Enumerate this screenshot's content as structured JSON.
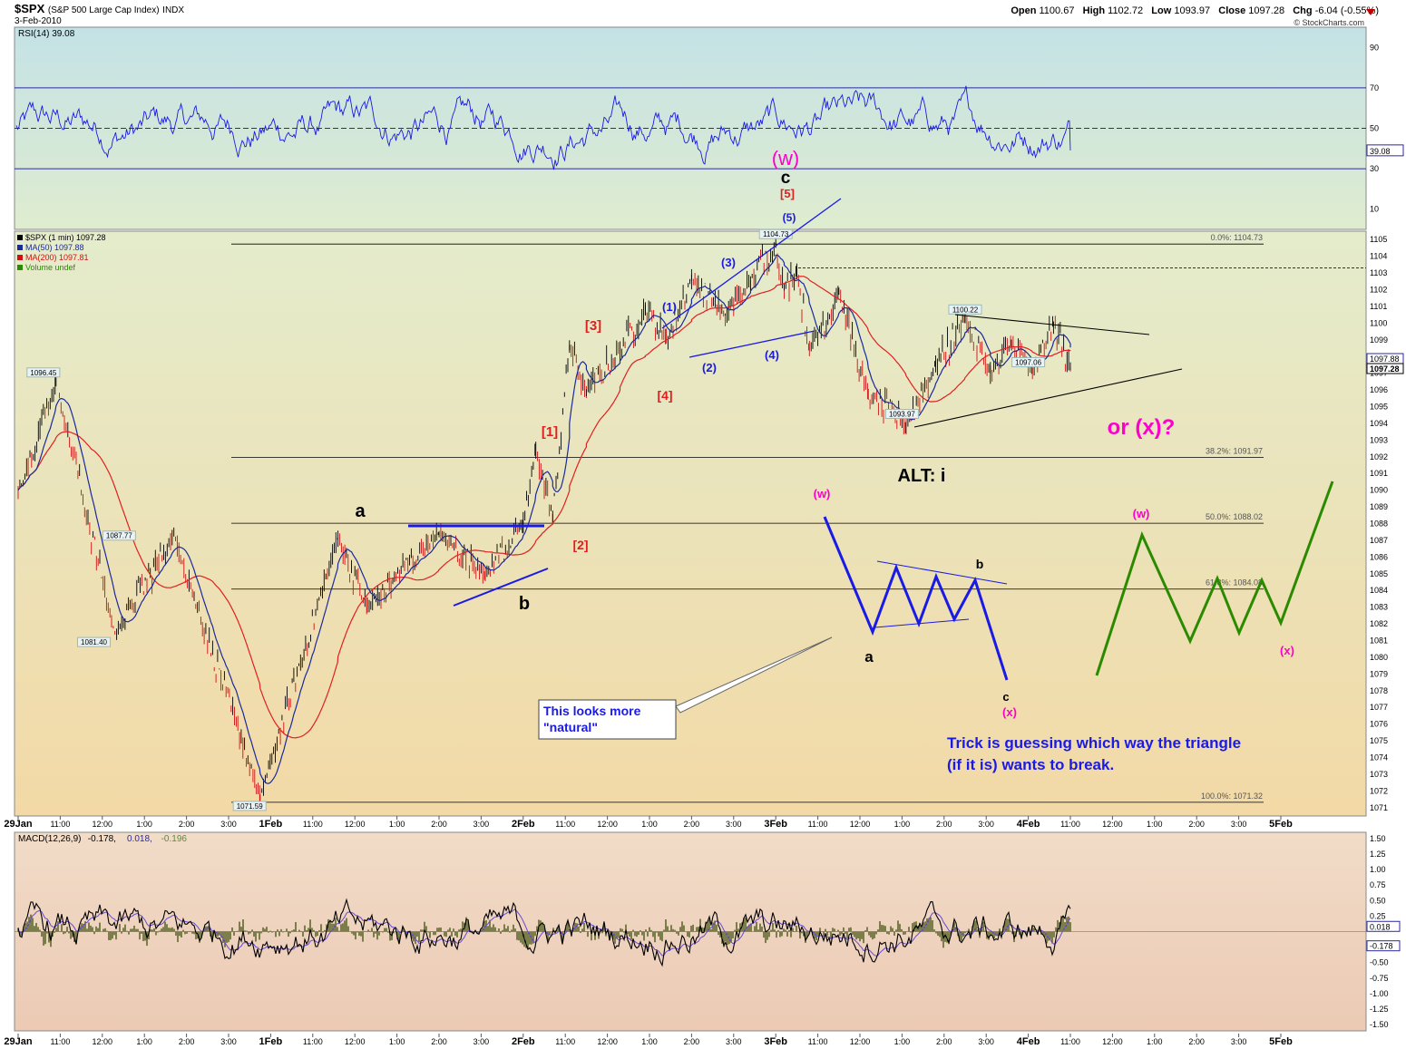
{
  "header": {
    "symbol": "$SPX",
    "name": "(S&P 500 Large Cap Index)",
    "exchange": "INDX",
    "date": "3-Feb-2010",
    "open_label": "Open",
    "open": "1100.67",
    "high_label": "High",
    "high": "1102.72",
    "low_label": "Low",
    "low": "1093.97",
    "close_label": "Close",
    "close": "1097.28",
    "chg_label": "Chg",
    "chg": "-6.04 (-0.55%)",
    "copyright": "© StockCharts.com"
  },
  "colors": {
    "rsi_bg": "#cfe6e6",
    "price_bg": "#f2e6b4",
    "macd_bg": "#f0d8c0",
    "blue": "#1a1ae6",
    "red": "#e02020",
    "magenta": "#ff00cc",
    "green": "#2a8a00",
    "hist": "#4a5a1a",
    "fib": "#000000"
  },
  "x_axis": {
    "labels": [
      "29Jan",
      "11:00",
      "12:00",
      "1:00",
      "2:00",
      "3:00",
      "1Feb",
      "11:00",
      "12:00",
      "1:00",
      "2:00",
      "3:00",
      "2Feb",
      "11:00",
      "12:00",
      "1:00",
      "2:00",
      "3:00",
      "3Feb",
      "11:00",
      "12:00",
      "1:00",
      "2:00",
      "3:00",
      "4Feb",
      "11:00",
      "12:00",
      "1:00",
      "2:00",
      "3:00",
      "5Feb"
    ],
    "bold": [
      "29Jan",
      "1Feb",
      "2Feb",
      "3Feb",
      "4Feb",
      "5Feb"
    ]
  },
  "chart_data": [
    {
      "type": "line",
      "panel": "RSI",
      "title": "RSI(14) 39.08",
      "ylim": [
        0,
        100
      ],
      "yticks": [
        10,
        30,
        50,
        70,
        90
      ],
      "reference_lines": [
        30,
        50,
        70
      ],
      "last_value_label": "39.08",
      "series": [
        {
          "name": "RSI(14)",
          "last": 39.08
        }
      ]
    },
    {
      "type": "line",
      "panel": "Price",
      "legend": [
        "$SPX (1 min) 1097.28",
        "MA(50) 1097.88",
        "MA(200) 1097.81",
        "Volume undef"
      ],
      "ylim": [
        1070.5,
        1105.5
      ],
      "yticks": [
        1071,
        1072,
        1073,
        1074,
        1075,
        1076,
        1077,
        1078,
        1079,
        1080,
        1081,
        1082,
        1083,
        1084,
        1085,
        1086,
        1087,
        1088,
        1089,
        1090,
        1091,
        1092,
        1093,
        1094,
        1095,
        1096,
        1097,
        1098,
        1099,
        1100,
        1101,
        1102,
        1103,
        1104,
        1105
      ],
      "right_labels": [
        "1097.88",
        "1097.28"
      ],
      "fib_levels": [
        {
          "label": "0.0%: 1104.73",
          "value": 1104.73
        },
        {
          "label": "38.2%: 1091.97",
          "value": 1091.97
        },
        {
          "label": "50.0%: 1088.02",
          "value": 1088.02
        },
        {
          "label": "61.8%: 1084.08",
          "value": 1084.08
        },
        {
          "label": "100.0%: 1071.32",
          "value": 1071.32
        }
      ],
      "price_labels": [
        {
          "text": "1096.45",
          "t": 0.6,
          "v": 1096.45
        },
        {
          "text": "1087.77",
          "t": 2.4,
          "v": 1087.77
        },
        {
          "text": "1081.40",
          "t": 1.8,
          "v": 1081.4
        },
        {
          "text": "1071.59",
          "t": 5.5,
          "v": 1071.59
        },
        {
          "text": "1104.73",
          "t": 18.0,
          "v": 1104.73
        },
        {
          "text": "1093.97",
          "t": 21.0,
          "v": 1093.97
        },
        {
          "text": "1100.22",
          "t": 22.5,
          "v": 1100.22
        },
        {
          "text": "1097.06",
          "t": 24.0,
          "v": 1097.06
        }
      ],
      "key_points": [
        {
          "t": 0.0,
          "v": 1090
        },
        {
          "t": 0.9,
          "v": 1096.45
        },
        {
          "t": 2.3,
          "v": 1081.4
        },
        {
          "t": 3.7,
          "v": 1087.3
        },
        {
          "t": 5.75,
          "v": 1071.59
        },
        {
          "t": 7.6,
          "v": 1087.2
        },
        {
          "t": 8.3,
          "v": 1083
        },
        {
          "t": 10.0,
          "v": 1087.5
        },
        {
          "t": 11.1,
          "v": 1085
        },
        {
          "t": 12.0,
          "v": 1088
        },
        {
          "t": 12.3,
          "v": 1092.3
        },
        {
          "t": 12.7,
          "v": 1088.5
        },
        {
          "t": 13.1,
          "v": 1098.7
        },
        {
          "t": 13.5,
          "v": 1096
        },
        {
          "t": 14.3,
          "v": 1098.4
        },
        {
          "t": 14.9,
          "v": 1100.9
        },
        {
          "t": 15.4,
          "v": 1099
        },
        {
          "t": 16.0,
          "v": 1102.6
        },
        {
          "t": 16.8,
          "v": 1100.5
        },
        {
          "t": 17.4,
          "v": 1102.5
        },
        {
          "t": 18.0,
          "v": 1104.73
        },
        {
          "t": 18.2,
          "v": 1102
        },
        {
          "t": 18.5,
          "v": 1103.3
        },
        {
          "t": 18.8,
          "v": 1098.5
        },
        {
          "t": 19.5,
          "v": 1101.7
        },
        {
          "t": 20.2,
          "v": 1095.5
        },
        {
          "t": 21.1,
          "v": 1093.97
        },
        {
          "t": 21.8,
          "v": 1097.5
        },
        {
          "t": 22.5,
          "v": 1100.22
        },
        {
          "t": 23.1,
          "v": 1097
        },
        {
          "t": 23.6,
          "v": 1098.7
        },
        {
          "t": 24.1,
          "v": 1097.06
        },
        {
          "t": 24.6,
          "v": 1100
        },
        {
          "t": 25.0,
          "v": 1097.28
        }
      ],
      "annotations": [
        {
          "text": "a",
          "color": "#000000"
        },
        {
          "text": "b",
          "color": "#000000"
        },
        {
          "text": "[1]",
          "color": "#e02020"
        },
        {
          "text": "[2]",
          "color": "#e02020"
        },
        {
          "text": "[3]",
          "color": "#e02020"
        },
        {
          "text": "[4]",
          "color": "#e02020"
        },
        {
          "text": "[5]",
          "color": "#e02020"
        },
        {
          "text": "(1)",
          "color": "#1a1ae6"
        },
        {
          "text": "(2)",
          "color": "#1a1ae6"
        },
        {
          "text": "(3)",
          "color": "#1a1ae6"
        },
        {
          "text": "(4)",
          "color": "#1a1ae6"
        },
        {
          "text": "(5)",
          "color": "#1a1ae6"
        },
        {
          "text": "(w)",
          "color": "#ff00cc"
        },
        {
          "text": "c",
          "color": "#000000"
        },
        {
          "text": "ALT: i",
          "color": "#000000"
        },
        {
          "text": "or (x)?",
          "color": "#ff00cc"
        },
        {
          "text": "(w)",
          "color": "#ff00cc"
        },
        {
          "text": "a",
          "color": "#000000"
        },
        {
          "text": "b",
          "color": "#000000"
        },
        {
          "text": "c",
          "color": "#000000"
        },
        {
          "text": "(x)",
          "color": "#ff00cc"
        },
        {
          "text": "(w)",
          "color": "#ff00cc"
        },
        {
          "text": "(x)",
          "color": "#ff00cc"
        }
      ],
      "callout": [
        "This looks more",
        "\"natural\""
      ],
      "note": [
        "Trick is guessing which way the triangle",
        "(if it is) wants to break."
      ]
    },
    {
      "type": "line",
      "panel": "MACD",
      "title_parts": [
        "MACD(12,26,9)",
        "-0.178,",
        "0.018,",
        "-0.196"
      ],
      "ylim": [
        -1.6,
        1.6
      ],
      "yticks": [
        -1.5,
        -1.25,
        -1.0,
        -0.75,
        -0.5,
        -0.25,
        0.25,
        0.5,
        0.75,
        1.0,
        1.25,
        1.5
      ],
      "right_labels": [
        "0.018",
        "-0.178"
      ],
      "series": [
        {
          "name": "MACD",
          "last": -0.178
        },
        {
          "name": "Signal",
          "last": 0.018
        },
        {
          "name": "Histogram",
          "last": -0.196
        }
      ]
    }
  ]
}
